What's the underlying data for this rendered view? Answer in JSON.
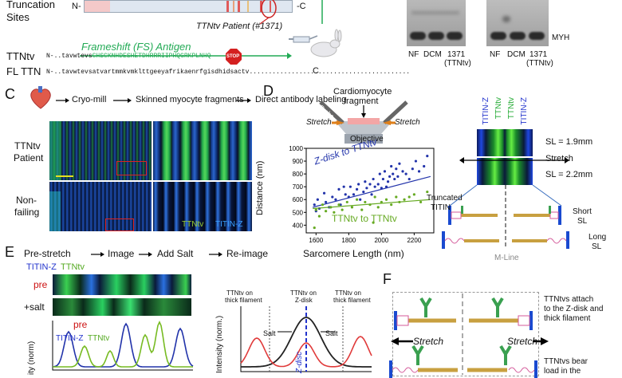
{
  "panelA": {
    "truncation_label_1": "Truncation",
    "truncation_label_2": "Sites",
    "n_term": "N-",
    "c_term": "-C",
    "patient_label": "TTNtv Patient (#1371)",
    "fs_antigen": "Frameshift (FS) Antigen",
    "ttntv_label": "TTNtv",
    "ttntv_n": "N-",
    "ttntv_seq_black": "..tavwtevs",
    "ttntv_seq_green": "CHSCKNHDESHETDHRRRIIPHQGRKPLNHQ",
    "stop": "STOP",
    "fl_label": "FL TTN",
    "fl_n": "N-",
    "fl_seq": "..tavwtevsatvartmmkvmklttgeeyafrikaenrfgisdhidsactv..........................................",
    "fl_c": "C"
  },
  "panelB": {
    "myh": "MYH",
    "lanes1": [
      "NF",
      "DCM",
      "1371"
    ],
    "lane1_sub": "(TTNtv)",
    "lanes2": [
      "NF",
      "DCM",
      "1371"
    ],
    "lane2_sub": "(TTNtv)"
  },
  "panelC": {
    "letter": "C",
    "steps": [
      "Cryo-mill",
      "Skinned myocyte fragments",
      "Direct antibody labeling"
    ],
    "row1_a": "TTNtv",
    "row1_b": "Patient",
    "row2_a": "Non-",
    "row2_b": "failing",
    "legend_ttntv": "TTNtv",
    "legend_titin": "TITIN-Z"
  },
  "panelD": {
    "letter": "D",
    "schematic_title_1": "Cardiomyocyte",
    "schematic_title_2": "fragment",
    "probe": "Probe",
    "stretch_left": "Stretch",
    "stretch_right": "Stretch",
    "objective": "Objective",
    "series1": "Z-disk to TTNtv",
    "series2": "TTNtv to TTNtv",
    "ylabel": "Distance (nm)",
    "xlabel": "Sarcomere Length (nm)",
    "col_labels": [
      "TITIN-Z",
      "TTNtv",
      "TTNtv",
      "TITIN-Z"
    ],
    "sl1": "SL = 1.9mm",
    "stretch": "Stretch",
    "sl2": "SL = 2.2mm",
    "truncated_1": "Truncated",
    "truncated_2": "TITIN",
    "short_1": "Short",
    "short_2": "SL",
    "long_1": "Long",
    "long_2": "SL",
    "mline": "M-Line"
  },
  "chart_data": {
    "type": "scatter",
    "xlabel": "Sarcomere Length (nm)",
    "ylabel": "Distance (nm)",
    "xlim": [
      1540,
      2320
    ],
    "ylim": [
      340,
      1000
    ],
    "xticks": [
      1600,
      1800,
      2000,
      2200
    ],
    "yticks": [
      400,
      500,
      600,
      700,
      800,
      900,
      1000
    ],
    "series": [
      {
        "name": "Z-disk to TTNtv",
        "color": "#2233aa",
        "fit": [
          [
            1580,
            540
          ],
          [
            2300,
            780
          ]
        ],
        "points": [
          [
            1590,
            560
          ],
          [
            1600,
            510
          ],
          [
            1610,
            600
          ],
          [
            1620,
            530
          ],
          [
            1650,
            650
          ],
          [
            1660,
            580
          ],
          [
            1680,
            540
          ],
          [
            1700,
            620
          ],
          [
            1720,
            600
          ],
          [
            1740,
            680
          ],
          [
            1750,
            560
          ],
          [
            1770,
            700
          ],
          [
            1780,
            640
          ],
          [
            1800,
            620
          ],
          [
            1810,
            700
          ],
          [
            1830,
            640
          ],
          [
            1850,
            680
          ],
          [
            1860,
            720
          ],
          [
            1870,
            600
          ],
          [
            1890,
            660
          ],
          [
            1900,
            740
          ],
          [
            1910,
            690
          ],
          [
            1930,
            720
          ],
          [
            1940,
            640
          ],
          [
            1950,
            760
          ],
          [
            1960,
            700
          ],
          [
            1980,
            720
          ],
          [
            1990,
            800
          ],
          [
            2000,
            690
          ],
          [
            2010,
            760
          ],
          [
            2020,
            820
          ],
          [
            2030,
            700
          ],
          [
            2040,
            740
          ],
          [
            2050,
            780
          ],
          [
            2060,
            860
          ],
          [
            2070,
            800
          ],
          [
            2080,
            760
          ],
          [
            2090,
            840
          ],
          [
            2100,
            780
          ],
          [
            2110,
            880
          ],
          [
            2130,
            820
          ],
          [
            2150,
            800
          ],
          [
            2170,
            760
          ],
          [
            2190,
            840
          ],
          [
            2210,
            900
          ],
          [
            2230,
            820
          ],
          [
            2260,
            860
          ],
          [
            2280,
            940
          ]
        ]
      },
      {
        "name": "TTNtv to TTNtv",
        "color": "#66aa22",
        "fit": [
          [
            1580,
            530
          ],
          [
            2300,
            600
          ]
        ],
        "points": [
          [
            1600,
            520
          ],
          [
            1620,
            470
          ],
          [
            1640,
            560
          ],
          [
            1660,
            510
          ],
          [
            1690,
            540
          ],
          [
            1710,
            500
          ],
          [
            1740,
            560
          ],
          [
            1760,
            520
          ],
          [
            1790,
            580
          ],
          [
            1820,
            540
          ],
          [
            1850,
            600
          ],
          [
            1880,
            520
          ],
          [
            1900,
            580
          ],
          [
            1930,
            560
          ],
          [
            1960,
            620
          ],
          [
            1980,
            540
          ],
          [
            2000,
            580
          ],
          [
            2030,
            600
          ],
          [
            2060,
            560
          ],
          [
            2090,
            620
          ],
          [
            2110,
            580
          ],
          [
            2140,
            600
          ],
          [
            2170,
            620
          ],
          [
            2200,
            640
          ],
          [
            2240,
            580
          ],
          [
            2280,
            660
          ],
          [
            1590,
            380
          ],
          [
            1950,
            420
          ]
        ]
      }
    ]
  },
  "panelE": {
    "letter": "E",
    "steps": [
      "Pre-stretch",
      "Image",
      "Add Salt",
      "Re-image"
    ],
    "legend_titin": "TITIN-Z",
    "legend_ttntv": "TTNtv",
    "pre": "pre",
    "salt": "+salt",
    "profile_pre": "pre",
    "profile_titin": "TITIN-Z",
    "profile_ttntv": "TTNtv",
    "profile_ylabel": "ity (norm)",
    "ann1_1": "TTNtv on",
    "ann1_2": "thick filament",
    "ann2_1": "TTNtv on",
    "ann2_2": "Z-disk",
    "ann3_1": "TTNtv on",
    "ann3_2": "thick filament",
    "salt_l": "Salt",
    "salt_r": "Salt",
    "zdisc": "Z-disc",
    "intensity_ylabel": "Intensity (norm.)"
  },
  "panelF": {
    "letter": "F",
    "attach_1": "TTNtvs attach",
    "attach_2": "to the Z-disk and",
    "attach_3": "thick filament",
    "stretch_l": "Stretch",
    "stretch_r": "Stretch",
    "bear_1": "TTNtvs bear",
    "bear_2": "load in the"
  }
}
